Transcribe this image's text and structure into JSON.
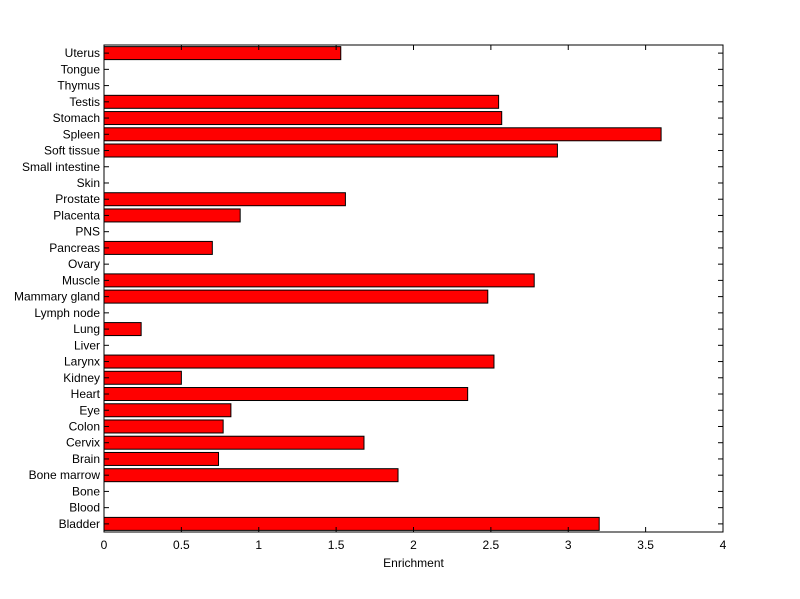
{
  "chart_data": {
    "type": "bar",
    "orientation": "horizontal",
    "categories": [
      "Bladder",
      "Blood",
      "Bone",
      "Bone marrow",
      "Brain",
      "Cervix",
      "Colon",
      "Eye",
      "Heart",
      "Kidney",
      "Larynx",
      "Liver",
      "Lung",
      "Lymph node",
      "Mammary gland",
      "Muscle",
      "Ovary",
      "Pancreas",
      "PNS",
      "Placenta",
      "Prostate",
      "Skin",
      "Small intestine",
      "Soft tissue",
      "Spleen",
      "Stomach",
      "Testis",
      "Thymus",
      "Tongue",
      "Uterus"
    ],
    "values": [
      3.2,
      0,
      0,
      1.9,
      0.74,
      1.68,
      0.77,
      0.82,
      2.35,
      0.5,
      2.52,
      0,
      0.24,
      0,
      2.48,
      2.78,
      0,
      0.7,
      0,
      0.88,
      1.56,
      0,
      0,
      2.93,
      3.6,
      2.57,
      2.55,
      0,
      0,
      1.53
    ],
    "title": "",
    "xlabel": "Enrichment",
    "ylabel": "",
    "xlim": [
      0,
      4
    ],
    "xticks": [
      0,
      0.5,
      1,
      1.5,
      2,
      2.5,
      3,
      3.5,
      4
    ],
    "xtick_labels": [
      "0",
      "0.5",
      "1",
      "1.5",
      "2",
      "2.5",
      "3",
      "3.5",
      "4"
    ],
    "grid": false,
    "bar_color": "#ff0000",
    "edge_color": "#000000"
  }
}
